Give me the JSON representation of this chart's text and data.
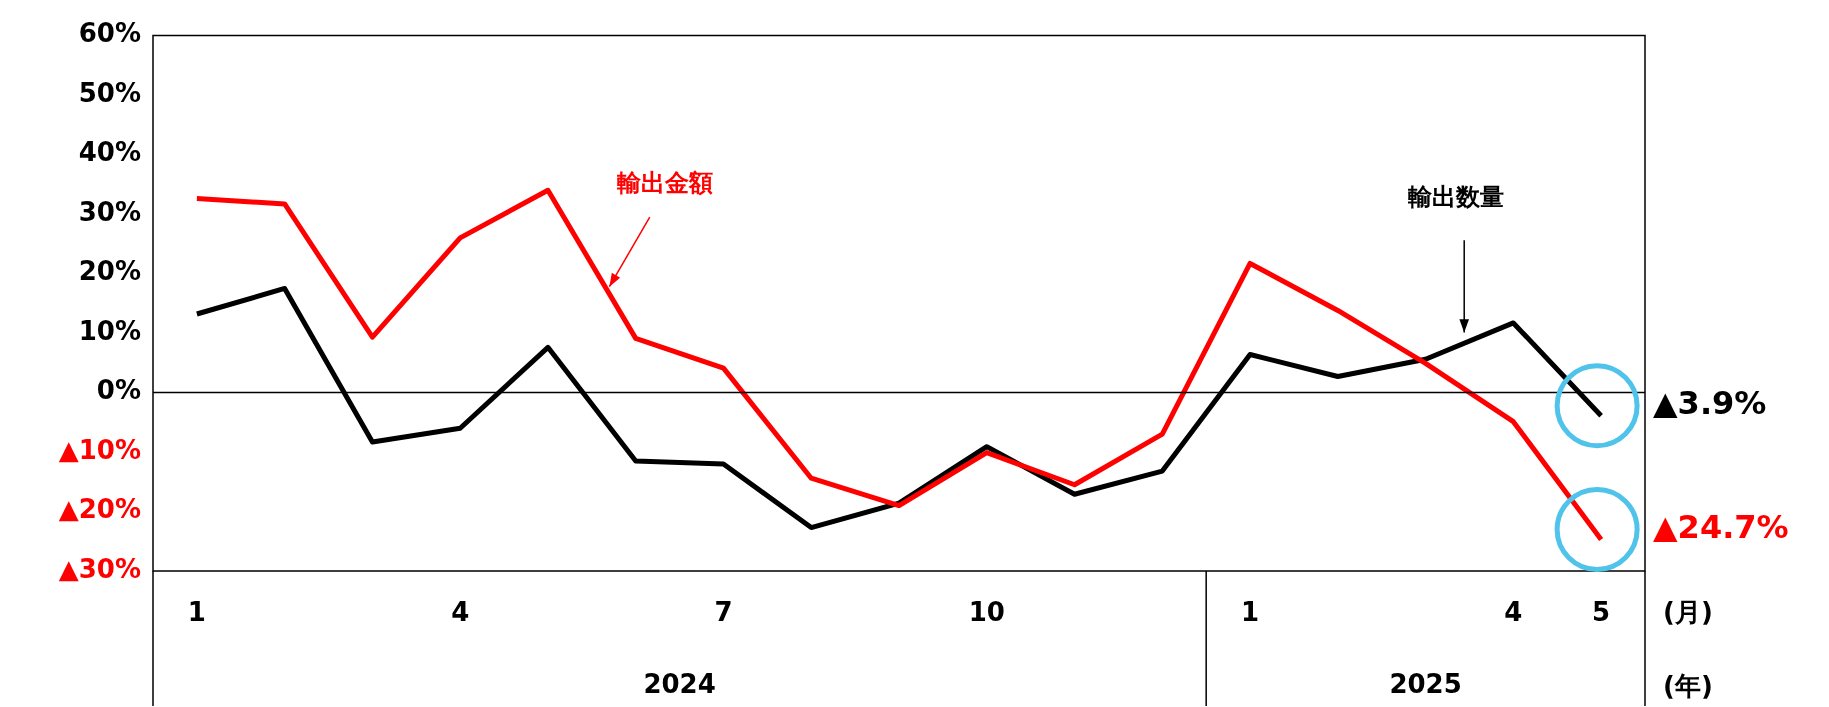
{
  "chart_data": {
    "type": "line",
    "categories": [
      "1",
      null,
      null,
      "4",
      null,
      null,
      "7",
      null,
      null,
      "10",
      null,
      null,
      "1",
      null,
      null,
      "4",
      "5"
    ],
    "series": [
      {
        "name": "輸出金額",
        "color": "#ff0000",
        "values": [
          32.6,
          31.7,
          9.3,
          26.0,
          34.0,
          9.1,
          4.1,
          -14.4,
          -19.0,
          -10.1,
          -15.5,
          -7.0,
          21.7,
          13.8,
          4.9,
          -4.9,
          -24.7
        ]
      },
      {
        "name": "輸出数量",
        "color": "#000000",
        "values": [
          13.2,
          17.5,
          -8.3,
          -6.0,
          7.6,
          -11.5,
          -12.0,
          -22.7,
          -18.6,
          -9.1,
          -17.1,
          -13.2,
          6.4,
          2.7,
          5.6,
          11.7,
          -3.9
        ]
      }
    ],
    "ylim": [
      -30,
      60
    ],
    "yticks": [
      {
        "value": -30,
        "label": "▲30%"
      },
      {
        "value": -20,
        "label": "▲20%"
      },
      {
        "value": -10,
        "label": "▲10%"
      },
      {
        "value": 0,
        "label": "0%"
      },
      {
        "value": 10,
        "label": "10%"
      },
      {
        "value": 20,
        "label": "20%"
      },
      {
        "value": 30,
        "label": "30%"
      },
      {
        "value": 40,
        "label": "40%"
      },
      {
        "value": 50,
        "label": "50%"
      },
      {
        "value": 60,
        "label": "60%"
      }
    ],
    "xlabel": "(月)",
    "annotations": [
      "2024",
      "2025",
      "(年)",
      {
        "text": "▲3.9%",
        "x": "5",
        "y": -3.9
      },
      {
        "text": "▲24.7%",
        "x": "5",
        "y": -24.7
      }
    ],
    "ref_lines": [
      {
        "axis": "y",
        "value": 0
      }
    ],
    "grid": false,
    "legend": false,
    "marker": "none",
    "line_style": "solid"
  }
}
